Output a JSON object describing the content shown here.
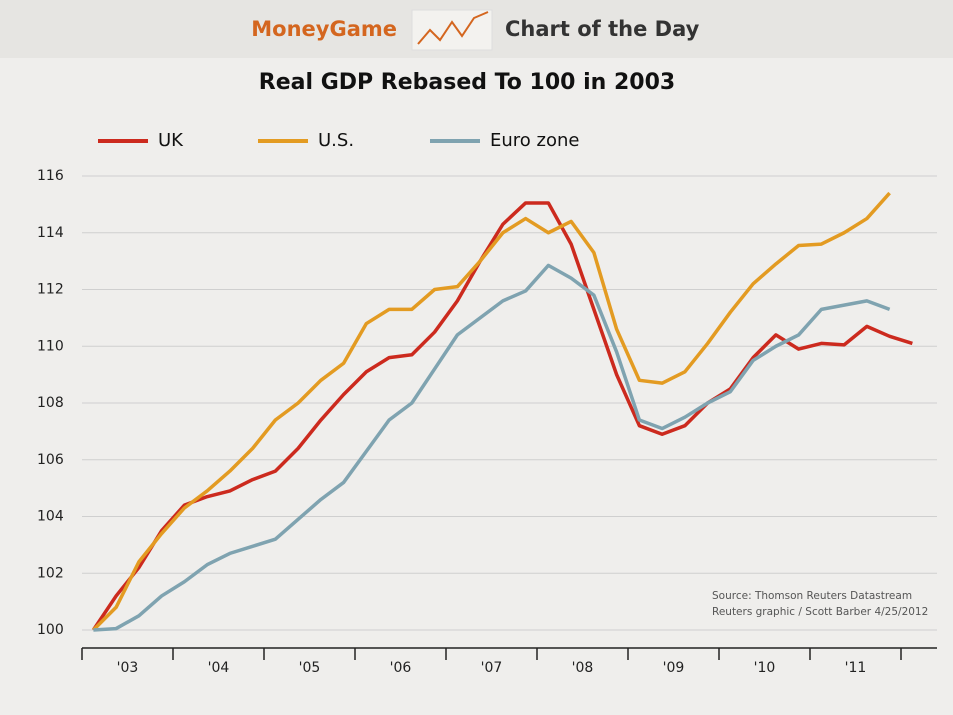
{
  "header": {
    "brand": "MoneyGame",
    "tagline": "Chart of the Day"
  },
  "chart_data": {
    "type": "line",
    "title": "Real GDP Rebased To 100 in 2003",
    "categories": [
      null,
      "'03",
      null,
      null,
      null,
      "'04",
      null,
      null,
      null,
      "'05",
      null,
      null,
      null,
      "'06",
      null,
      null,
      null,
      "'07",
      null,
      null,
      null,
      "'08",
      null,
      null,
      null,
      "'09",
      null,
      null,
      null,
      "'10",
      null,
      null,
      null,
      "'11",
      null,
      null,
      null
    ],
    "series": [
      {
        "name": "UK",
        "color": "#cc2a1e",
        "values": [
          100,
          101.2,
          102.2,
          103.5,
          104.4,
          104.7,
          104.9,
          105.3,
          105.6,
          106.4,
          107.4,
          108.3,
          109.1,
          109.6,
          109.7,
          110.5,
          111.6,
          113.0,
          114.3,
          115.05,
          115.05,
          113.6,
          111.3,
          109.0,
          107.2,
          106.9,
          107.2,
          108.0,
          108.5,
          109.6,
          110.4,
          109.9,
          110.1,
          110.05,
          110.7,
          110.35,
          110.1
        ]
      },
      {
        "name": "U.S.",
        "color": "#e39b22",
        "values": [
          100,
          100.8,
          102.4,
          103.4,
          104.3,
          104.9,
          105.6,
          106.4,
          107.4,
          108.0,
          108.8,
          109.4,
          110.8,
          111.3,
          111.3,
          112.0,
          112.1,
          113.0,
          114.0,
          114.5,
          114.0,
          114.4,
          113.3,
          110.6,
          108.8,
          108.7,
          109.1,
          110.1,
          111.2,
          112.2,
          112.9,
          113.55,
          113.6,
          114.0,
          114.5,
          115.4,
          null
        ]
      },
      {
        "name": "Euro zone",
        "color": "#7fa3b0",
        "values": [
          100,
          100.05,
          100.5,
          101.2,
          101.7,
          102.3,
          102.7,
          102.95,
          103.2,
          103.9,
          104.6,
          105.2,
          106.3,
          107.4,
          108.0,
          109.2,
          110.4,
          111.0,
          111.6,
          111.95,
          112.85,
          112.4,
          111.8,
          109.8,
          107.4,
          107.1,
          107.5,
          108.0,
          108.4,
          109.5,
          110.0,
          110.4,
          111.3,
          111.45,
          111.6,
          111.3,
          null
        ]
      }
    ],
    "ylim": [
      100,
      116
    ],
    "yticks": [
      100,
      102,
      104,
      106,
      108,
      110,
      112,
      114,
      116
    ],
    "grid": true,
    "notes": [
      "Source: Thomson Reuters Datastream",
      "Reuters graphic / Scott Barber 4/25/2012"
    ]
  }
}
